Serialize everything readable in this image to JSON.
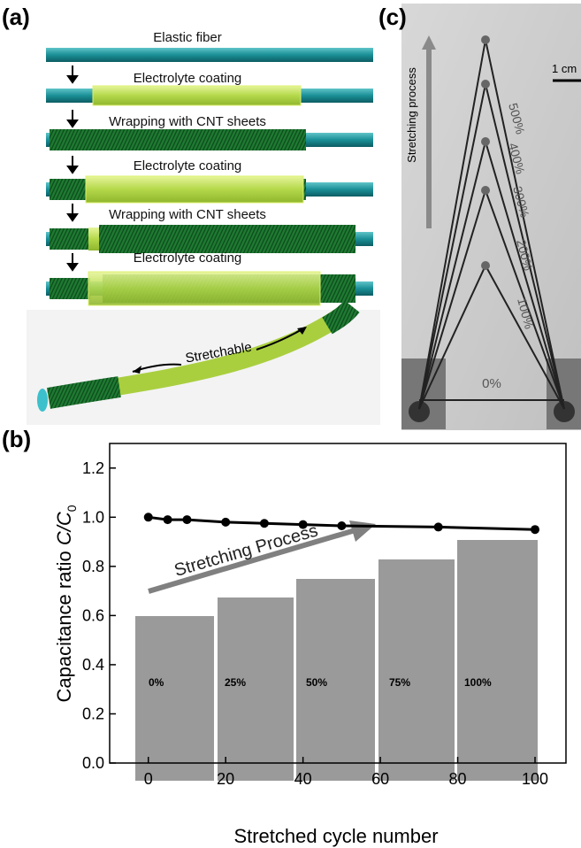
{
  "panels": {
    "a": {
      "label": "(a)",
      "steps": [
        "Elastic fiber",
        "Electrolyte coating",
        "Wrapping with CNT sheets",
        "Electrolyte coating",
        "Wrapping with CNT sheets",
        "Electrolyte coating"
      ],
      "annotation": "Stretchable"
    },
    "c": {
      "label": "(c)",
      "scale_bar": "1 cm",
      "arrow_label": "Stretching process",
      "strain_labels": [
        "500%",
        "400%",
        "300%",
        "200%",
        "100%",
        "0%"
      ]
    }
  },
  "chart_data": {
    "type": "line",
    "panel_label": "(b)",
    "xlabel": "Stretched cycle number",
    "ylabel": {
      "text": "Capacitance ratio",
      "ratio": "C/C",
      "subscript": "0"
    },
    "annotation": "Stretching Process",
    "inset_labels": [
      "0%",
      "25%",
      "50%",
      "75%",
      "100%"
    ],
    "x": [
      0,
      5,
      10,
      20,
      30,
      40,
      50,
      75,
      100
    ],
    "series": [
      {
        "values": [
          1.0,
          0.99,
          0.99,
          0.98,
          0.975,
          0.97,
          0.965,
          0.96,
          0.95
        ],
        "color": "#000000"
      }
    ],
    "xlim": [
      -10,
      108
    ],
    "ylim": [
      0,
      1.3
    ],
    "xticks": [
      0,
      20,
      40,
      60,
      80,
      100
    ],
    "yticks": [
      {
        "value": 0,
        "label": "0.0"
      },
      0.2,
      0.4,
      0.6,
      0.8,
      {
        "value": 1,
        "label": "1.0"
      },
      1.2
    ]
  }
}
